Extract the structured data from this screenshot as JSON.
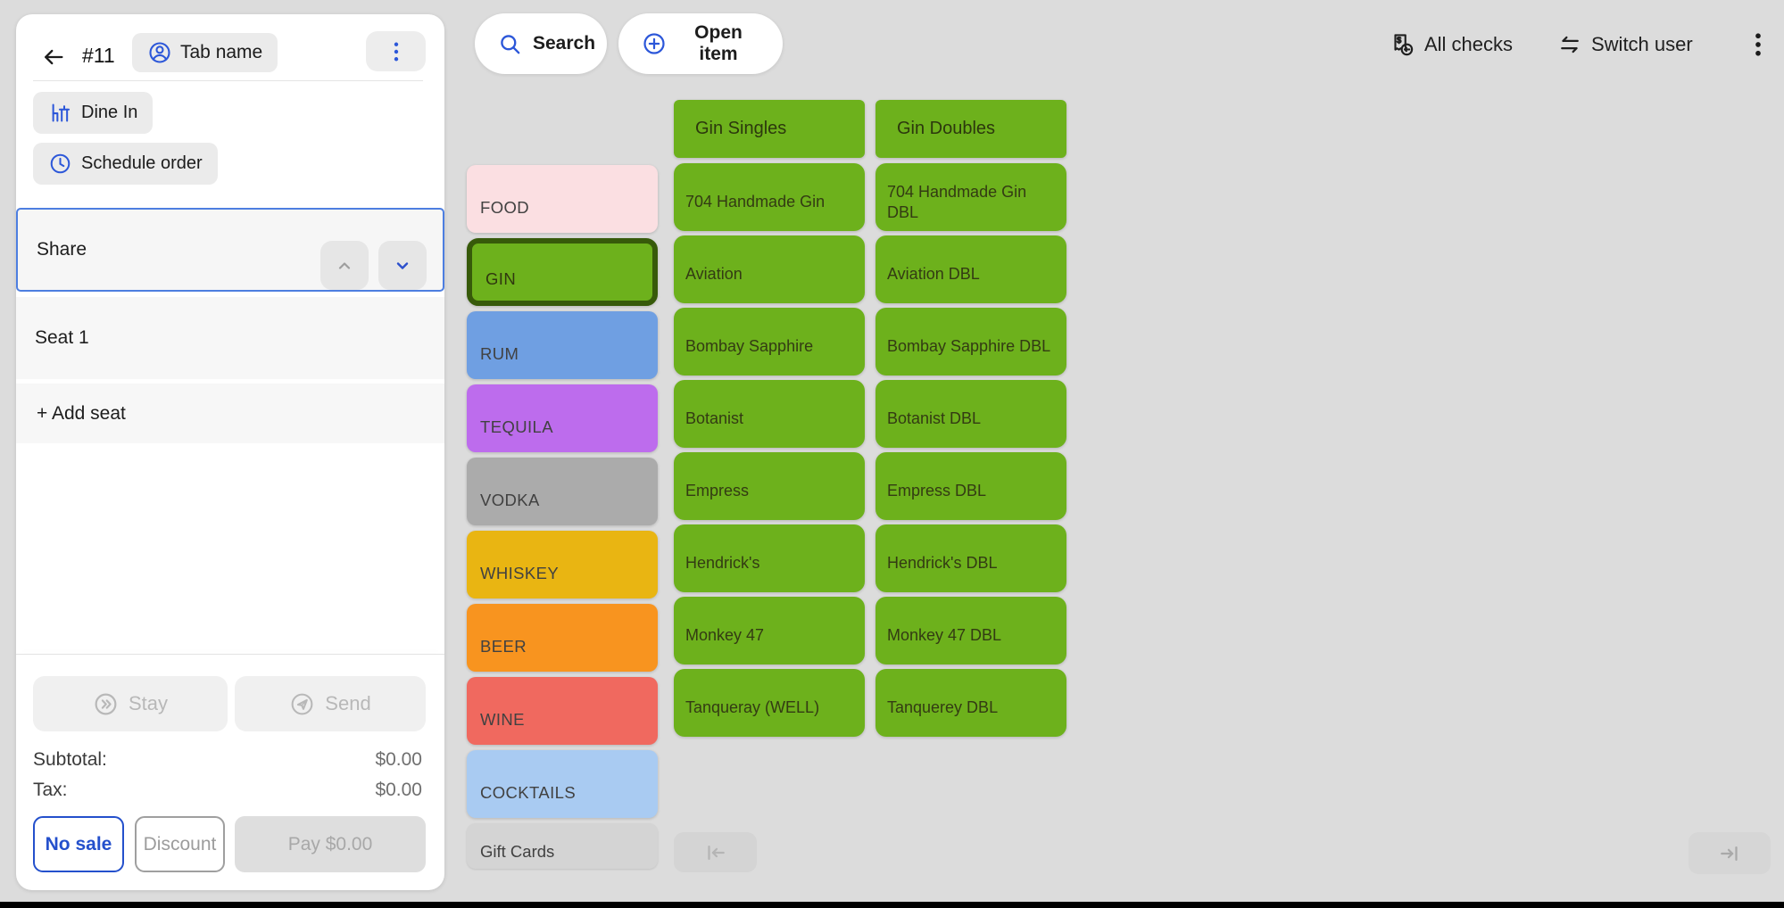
{
  "app": {
    "background": "#dcdcdc",
    "accent_blue": "#2c57d9",
    "selected_border_green": "#375a0a",
    "nav_bar_color": "#000000"
  },
  "top_bar": {
    "search_button": "Search",
    "open_item_button": "Open item",
    "all_checks_button": "All checks",
    "switch_user_button": "Switch user"
  },
  "order_panel": {
    "order_number": "#11",
    "tab_name_button": "Tab name",
    "dine_in_button": "Dine In",
    "schedule_order_button": "Schedule order",
    "share_label": "Share",
    "seats": [
      {
        "label": "Seat 1"
      }
    ],
    "add_seat_button": "+ Add seat",
    "stay_button": "Stay",
    "send_button": "Send",
    "totals": [
      {
        "label": "Subtotal:",
        "value": "$0.00"
      },
      {
        "label": "Tax:",
        "value": "$0.00"
      }
    ],
    "no_sale_button": "No sale",
    "discount_button": "Discount",
    "pay_button": "Pay $0.00"
  },
  "categories": [
    {
      "label": "FOOD",
      "color": "#fbdfe2",
      "selected": false
    },
    {
      "label": "GIN",
      "color": "#6db11c",
      "selected": true
    },
    {
      "label": "RUM",
      "color": "#6f9fe2",
      "selected": false
    },
    {
      "label": "TEQUILA",
      "color": "#bd6ced",
      "selected": false
    },
    {
      "label": "VODKA",
      "color": "#ababab",
      "selected": false
    },
    {
      "label": "WHISKEY",
      "color": "#e9b512",
      "selected": false
    },
    {
      "label": "BEER",
      "color": "#f8941f",
      "selected": false
    },
    {
      "label": "WINE",
      "color": "#f0695f",
      "selected": false
    },
    {
      "label": "COCKTAILS",
      "color": "#a9cbf2",
      "selected": false
    },
    {
      "label": "Gift Cards",
      "color": "#d4d4d4",
      "selected": false
    }
  ],
  "menu_grid": {
    "tile_color": "#6db11c",
    "columns": [
      {
        "header": "Gin Singles",
        "items": [
          "704 Handmade Gin",
          "Aviation",
          "Bombay Sapphire",
          "Botanist",
          "Empress",
          "Hendrick's",
          "Monkey 47",
          "Tanqueray (WELL)"
        ]
      },
      {
        "header": "Gin Doubles",
        "items": [
          "704 Handmade Gin DBL",
          "Aviation DBL",
          "Bombay Sapphire DBL",
          "Botanist DBL",
          "Empress DBL",
          "Hendrick's DBL",
          "Monkey 47 DBL",
          "Tanquerey DBL"
        ]
      }
    ]
  },
  "icons": {
    "back": "arrow-left",
    "tab_name": "person-circle",
    "order_menu": "kebab-vertical",
    "dine_in": "table-and-chair",
    "schedule": "clock",
    "share_collapse": "chevron-up",
    "share_expand": "chevron-down",
    "stay": "double-chevron-circle",
    "send": "paper-plane-circle",
    "search": "magnifier",
    "open_item": "plus-circle",
    "all_checks": "receipt-dollar-return",
    "switch_user": "swap-arrows",
    "overflow": "kebab-vertical",
    "page_first": "arrow-to-start",
    "page_last": "arrow-to-end"
  }
}
